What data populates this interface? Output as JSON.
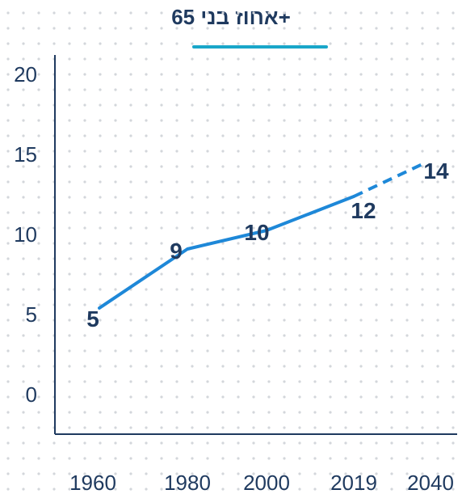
{
  "chart_data": {
    "type": "line",
    "title": "אחוז בני 65+",
    "xlabel": "",
    "ylabel": "",
    "categories": [
      "1960",
      "1980",
      "2000",
      "2019",
      "2040"
    ],
    "series": [
      {
        "values": [
          5,
          9,
          10,
          12,
          14
        ],
        "data_labels": [
          "5",
          "9",
          "10",
          "12",
          "14"
        ],
        "projected_from_index": 3
      }
    ],
    "y_ticks": [
      "0",
      "5",
      "10",
      "15",
      "20"
    ],
    "ylim": [
      -2,
      22
    ],
    "grid": "dotted-background",
    "legend": "none",
    "colors": {
      "line": "#1e88d8",
      "text": "#1f3a5f",
      "axis": "#1f3a5f",
      "title_underline": "#19a6c9",
      "dots": "#d3d6db"
    }
  }
}
